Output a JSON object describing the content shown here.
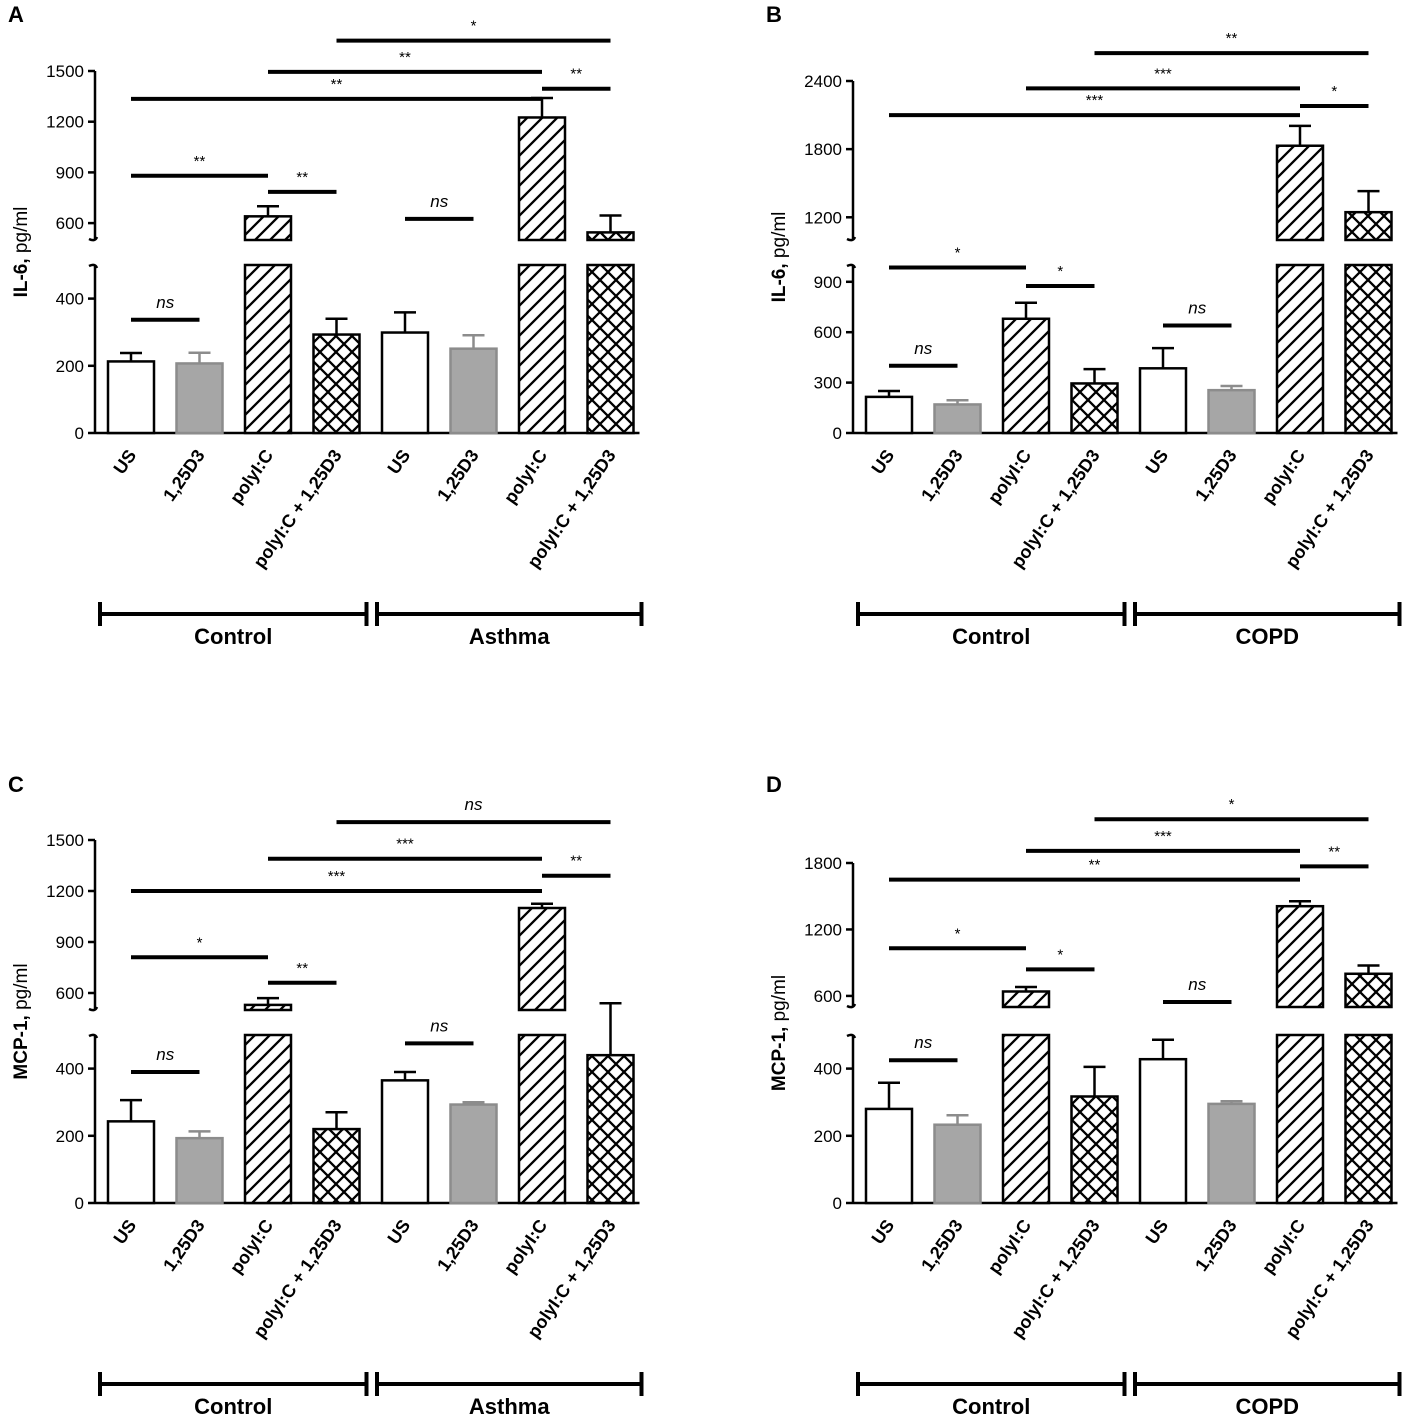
{
  "colors": {
    "us_fill": "#ffffff",
    "vd_fill": "#a6a6a6",
    "vd_stroke": "#8c8c8c",
    "line": "#000000"
  },
  "chart_data": [
    {
      "panel": "A",
      "type": "bar",
      "ylabel_bold": "IL-6,",
      "ylabel_rest": " pg/ml",
      "categories": [
        "US",
        "1,25D3",
        "polyI:C",
        "polyI:C + 1,25D3",
        "US",
        "1,25D3",
        "polyI:C",
        "polyI:C + 1,25D3"
      ],
      "groups": [
        "Control",
        "Asthma"
      ],
      "fills": [
        "white",
        "gray",
        "hatch",
        "cross",
        "white",
        "gray",
        "hatch",
        "cross"
      ],
      "values": [
        213,
        207,
        640,
        293,
        299,
        251,
        1225,
        545
      ],
      "errors": [
        25,
        32,
        60,
        47,
        60,
        40,
        115,
        100
      ],
      "lower_axis": {
        "range": [
          0,
          500
        ],
        "ticks": [
          0,
          200,
          400
        ]
      },
      "upper_axis": {
        "range": [
          500,
          1500
        ],
        "ticks": [
          600,
          900,
          1200,
          1500
        ]
      },
      "comparisons": [
        {
          "from": 0,
          "to": 1,
          "label": "ns",
          "value": 337
        },
        {
          "from": 0,
          "to": 2,
          "label": "**",
          "value": 880
        },
        {
          "from": 2,
          "to": 3,
          "label": "**",
          "value": 785
        },
        {
          "from": 4,
          "to": 5,
          "label": "ns",
          "value": 625
        },
        {
          "from": 0,
          "to": 6,
          "label": "**",
          "value": 1335
        },
        {
          "from": 2,
          "to": 6,
          "label": "**",
          "value": 1495
        },
        {
          "from": 6,
          "to": 7,
          "label": "**",
          "value": 1395
        },
        {
          "from": 3,
          "to": 7,
          "label": "*",
          "value": 1680
        }
      ]
    },
    {
      "panel": "B",
      "type": "bar",
      "ylabel_bold": "IL-6,",
      "ylabel_rest": " pg/ml",
      "categories": [
        "US",
        "1,25D3",
        "polyI:C",
        "polyI:C + 1,25D3",
        "US",
        "1,25D3",
        "polyI:C",
        "polyI:C + 1,25D3"
      ],
      "groups": [
        "Control",
        "COPD"
      ],
      "fills": [
        "white",
        "gray",
        "hatch",
        "cross",
        "white",
        "gray",
        "hatch",
        "cross"
      ],
      "values": [
        215,
        170,
        680,
        295,
        385,
        255,
        1830,
        1245
      ],
      "errors": [
        35,
        25,
        95,
        85,
        120,
        25,
        175,
        185
      ],
      "lower_axis": {
        "range": [
          0,
          1000
        ],
        "ticks": [
          0,
          300,
          600,
          900
        ]
      },
      "upper_axis": {
        "range": [
          1000,
          2400
        ],
        "ticks": [
          1200,
          1800,
          2400
        ]
      },
      "comparisons": [
        {
          "from": 0,
          "to": 1,
          "label": "ns",
          "value": 400
        },
        {
          "from": 0,
          "to": 2,
          "label": "*",
          "value": 985
        },
        {
          "from": 2,
          "to": 3,
          "label": "*",
          "value": 875
        },
        {
          "from": 4,
          "to": 5,
          "label": "ns",
          "value": 640
        },
        {
          "from": 0,
          "to": 6,
          "label": "***",
          "value": 2100
        },
        {
          "from": 2,
          "to": 6,
          "label": "***",
          "value": 2335
        },
        {
          "from": 6,
          "to": 7,
          "label": "*",
          "value": 2180
        },
        {
          "from": 3,
          "to": 7,
          "label": "**",
          "value": 2645
        }
      ]
    },
    {
      "panel": "C",
      "type": "bar",
      "ylabel_bold": "MCP-1,",
      "ylabel_rest": " pg/ml",
      "categories": [
        "US",
        "1,25D3",
        "polyI:C",
        "polyI:C + 1,25D3",
        "US",
        "1,25D3",
        "polyI:C",
        "polyI:C + 1,25D3"
      ],
      "groups": [
        "Control",
        "Asthma"
      ],
      "fills": [
        "white",
        "gray",
        "hatch",
        "cross",
        "white",
        "gray",
        "hatch",
        "cross"
      ],
      "values": [
        243,
        193,
        530,
        220,
        365,
        293,
        1100,
        440
      ],
      "errors": [
        63,
        20,
        40,
        50,
        25,
        7,
        25,
        100
      ],
      "lower_axis": {
        "range": [
          0,
          500
        ],
        "ticks": [
          0,
          200,
          400
        ]
      },
      "upper_axis": {
        "range": [
          500,
          1500
        ],
        "ticks": [
          600,
          900,
          1200,
          1500
        ]
      },
      "comparisons": [
        {
          "from": 0,
          "to": 1,
          "label": "ns",
          "value": 390
        },
        {
          "from": 0,
          "to": 2,
          "label": "*",
          "value": 810
        },
        {
          "from": 2,
          "to": 3,
          "label": "**",
          "value": 660
        },
        {
          "from": 4,
          "to": 5,
          "label": "ns",
          "value": 475
        },
        {
          "from": 0,
          "to": 6,
          "label": "***",
          "value": 1200
        },
        {
          "from": 2,
          "to": 6,
          "label": "***",
          "value": 1390
        },
        {
          "from": 6,
          "to": 7,
          "label": "**",
          "value": 1290
        },
        {
          "from": 3,
          "to": 7,
          "label": "ns",
          "value": 1605
        }
      ]
    },
    {
      "panel": "D",
      "type": "bar",
      "ylabel_bold": "MCP-1,",
      "ylabel_rest": " pg/ml",
      "categories": [
        "US",
        "1,25D3",
        "polyI:C",
        "polyI:C + 1,25D3",
        "US",
        "1,25D3",
        "polyI:C",
        "polyI:C + 1,25D3"
      ],
      "groups": [
        "Control",
        "COPD"
      ],
      "fills": [
        "white",
        "gray",
        "hatch",
        "cross",
        "white",
        "gray",
        "hatch",
        "cross"
      ],
      "values": [
        280,
        233,
        640,
        317,
        428,
        295,
        1410,
        800
      ],
      "errors": [
        78,
        28,
        40,
        88,
        58,
        8,
        45,
        75
      ],
      "lower_axis": {
        "range": [
          0,
          500
        ],
        "ticks": [
          0,
          200,
          400
        ]
      },
      "upper_axis": {
        "range": [
          500,
          1800
        ],
        "ticks": [
          600,
          1200,
          1800
        ]
      },
      "comparisons": [
        {
          "from": 0,
          "to": 1,
          "label": "ns",
          "value": 425
        },
        {
          "from": 0,
          "to": 2,
          "label": "*",
          "value": 1030
        },
        {
          "from": 2,
          "to": 3,
          "label": "*",
          "value": 840
        },
        {
          "from": 4,
          "to": 5,
          "label": "ns",
          "value": 545
        },
        {
          "from": 0,
          "to": 6,
          "label": "**",
          "value": 1650
        },
        {
          "from": 2,
          "to": 6,
          "label": "***",
          "value": 1910
        },
        {
          "from": 6,
          "to": 7,
          "label": "**",
          "value": 1770
        },
        {
          "from": 3,
          "to": 7,
          "label": "*",
          "value": 2195
        }
      ]
    }
  ]
}
